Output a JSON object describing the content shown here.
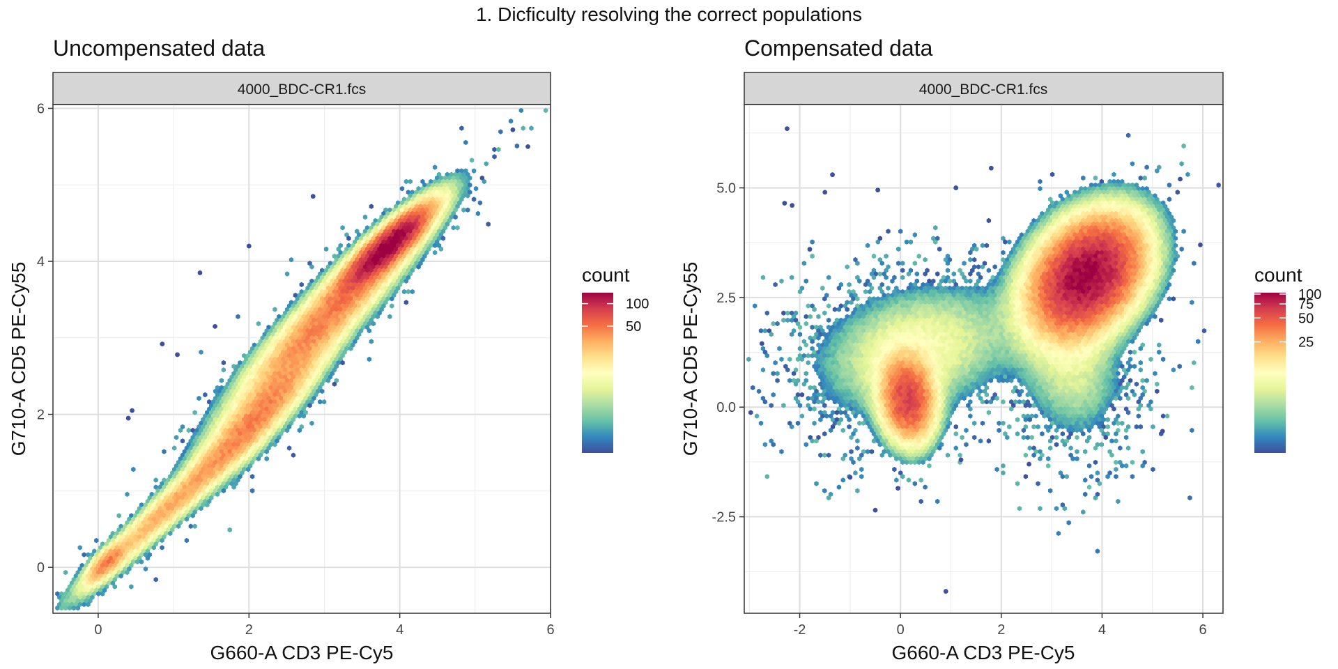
{
  "figure": {
    "title": "1. Dicficulty resolving the correct populations"
  },
  "chart_data": [
    {
      "type": "heatmap",
      "subtype": "hexbin",
      "title": "Uncompensated data",
      "facet_label": "4000_BDC-CR1.fcs",
      "xlabel": "G660-A CD3 PE-Cy5",
      "ylabel": "G710-A CD5 PE-Cy55",
      "xlim": [
        -0.6,
        6.0
      ],
      "ylim": [
        -0.6,
        6.05
      ],
      "x_ticks": [
        0,
        2,
        4,
        6
      ],
      "x_tick_labels": [
        "0",
        "2",
        "4",
        "6"
      ],
      "y_ticks": [
        0,
        2,
        4,
        6
      ],
      "y_tick_labels": [
        "0",
        "2",
        "4",
        "6"
      ],
      "grid": true,
      "legend": {
        "title": "count",
        "position": "right",
        "range": [
          1,
          140
        ],
        "breaks": [
          50,
          100
        ],
        "break_labels": [
          "50",
          "100"
        ]
      },
      "colormap": [
        "#3e4f9e",
        "#3288bd",
        "#66c2a5",
        "#abdda4",
        "#e6f598",
        "#ffffbf",
        "#fee08b",
        "#fdae61",
        "#f46d43",
        "#d53e4f",
        "#9e0142"
      ],
      "populations": [
        {
          "center": [
            3.85,
            4.2
          ],
          "sd_major": 0.42,
          "sd_minor": 0.11,
          "angle_deg": 42,
          "peak_count": 140
        },
        {
          "center": [
            3.1,
            3.35
          ],
          "sd_major": 0.95,
          "sd_minor": 0.18,
          "angle_deg": 45,
          "peak_count": 45
        },
        {
          "center": [
            2.1,
            1.95
          ],
          "sd_major": 0.7,
          "sd_minor": 0.16,
          "angle_deg": 46,
          "peak_count": 40
        },
        {
          "center": [
            0.9,
            0.75
          ],
          "sd_major": 0.85,
          "sd_minor": 0.11,
          "angle_deg": 43,
          "peak_count": 30
        },
        {
          "center": [
            0.1,
            0.05
          ],
          "sd_major": 0.2,
          "sd_minor": 0.08,
          "angle_deg": 45,
          "peak_count": 35
        }
      ],
      "outliers": [
        [
          5.5,
          5.72
        ],
        [
          1.35,
          3.85
        ],
        [
          0.85,
          2.92
        ],
        [
          1.05,
          2.78
        ],
        [
          0.45,
          2.05
        ],
        [
          0.4,
          1.95
        ],
        [
          1.55,
          3.15
        ],
        [
          2.0,
          4.2
        ],
        [
          2.85,
          4.85
        ],
        [
          5.7,
          5.5
        ]
      ]
    },
    {
      "type": "heatmap",
      "subtype": "hexbin",
      "title": "Compensated data",
      "facet_label": "4000_BDC-CR1.fcs",
      "xlabel": "G660-A CD3 PE-Cy5",
      "ylabel": "G710-A CD5 PE-Cy55",
      "xlim": [
        -3.1,
        6.4
      ],
      "ylim": [
        -4.7,
        6.9
      ],
      "x_ticks": [
        -2,
        0,
        2,
        4,
        6
      ],
      "x_tick_labels": [
        "-2",
        "0",
        "2",
        "4",
        "6"
      ],
      "y_ticks": [
        -2.5,
        0.0,
        2.5,
        5.0
      ],
      "y_tick_labels": [
        "-2.5",
        "0.0",
        "2.5",
        "5.0"
      ],
      "grid": true,
      "legend": {
        "title": "count",
        "position": "right",
        "range": [
          1,
          104
        ],
        "breaks": [
          25,
          50,
          75,
          100
        ],
        "break_labels": [
          "25",
          "50",
          "75",
          "100"
        ]
      },
      "colormap": [
        "#3e4f9e",
        "#3288bd",
        "#66c2a5",
        "#abdda4",
        "#e6f598",
        "#ffffbf",
        "#fee08b",
        "#fdae61",
        "#f46d43",
        "#d53e4f",
        "#9e0142"
      ],
      "populations": [
        {
          "center": [
            3.7,
            3.0
          ],
          "sd_major": 0.8,
          "sd_minor": 0.55,
          "angle_deg": 60,
          "peak_count": 104
        },
        {
          "center": [
            0.15,
            0.15
          ],
          "sd_major": 0.55,
          "sd_minor": 0.3,
          "angle_deg": 95,
          "peak_count": 60
        },
        {
          "center": [
            0.3,
            1.3
          ],
          "sd_major": 1.1,
          "sd_minor": 0.75,
          "angle_deg": 20,
          "peak_count": 9
        },
        {
          "center": [
            3.4,
            0.9
          ],
          "sd_major": 0.9,
          "sd_minor": 0.55,
          "angle_deg": 95,
          "peak_count": 6
        }
      ],
      "outliers": [
        [
          -2.25,
          6.35
        ],
        [
          -1.35,
          5.3
        ],
        [
          -2.3,
          4.65
        ],
        [
          -2.15,
          4.6
        ],
        [
          -1.8,
          3.6
        ],
        [
          -2.75,
          1.45
        ],
        [
          -1.5,
          4.9
        ],
        [
          1.8,
          5.45
        ],
        [
          -0.45,
          4.95
        ],
        [
          0.9,
          -4.2
        ],
        [
          -0.05,
          -1.85
        ],
        [
          -0.5,
          -2.35
        ],
        [
          -1.0,
          -1.6
        ],
        [
          5.55,
          5.2
        ],
        [
          5.95,
          3.7
        ],
        [
          5.2,
          -0.55
        ],
        [
          2.55,
          -1.3
        ],
        [
          1.2,
          -1.2
        ],
        [
          1.1,
          5.0
        ]
      ]
    }
  ]
}
